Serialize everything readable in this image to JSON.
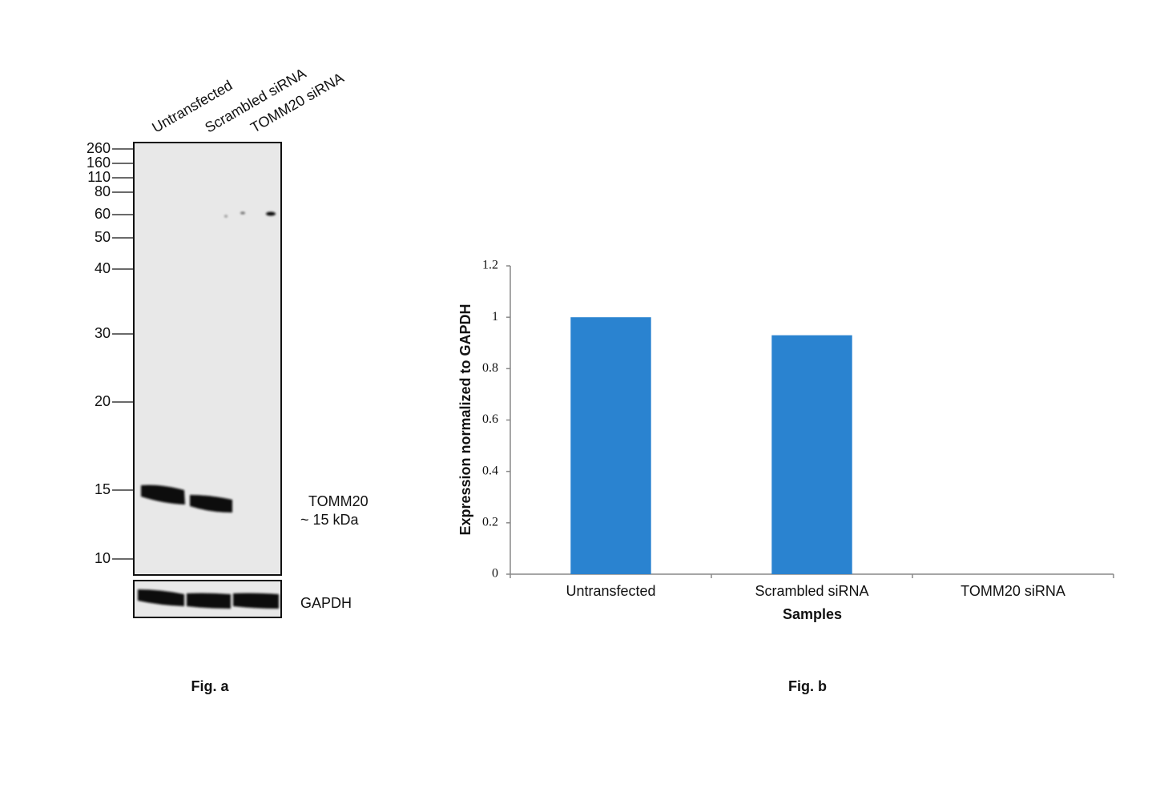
{
  "blot": {
    "lanes": [
      "Untransfected",
      "Scrambled siRNA",
      "TOMM20 siRNA"
    ],
    "markers": [
      260,
      160,
      110,
      80,
      60,
      50,
      40,
      30,
      20,
      15,
      10
    ],
    "target": {
      "name": "TOMM20",
      "size": "~ 15 kDa"
    },
    "loading_control": "GAPDH",
    "caption": "Fig. a"
  },
  "chart_data": {
    "type": "bar",
    "categories": [
      "Untransfected",
      "Scrambled siRNA",
      "TOMM20 siRNA"
    ],
    "values": [
      1,
      0.93,
      0
    ],
    "color": "#2a83d0",
    "ylim": [
      0,
      1.2
    ],
    "yticks": [
      0,
      0.2,
      0.4,
      0.6,
      0.8,
      1,
      1.2
    ],
    "y_label": "Expression normalized to GAPDH",
    "x_label": "Samples",
    "grid": false,
    "caption": "Fig. b"
  }
}
